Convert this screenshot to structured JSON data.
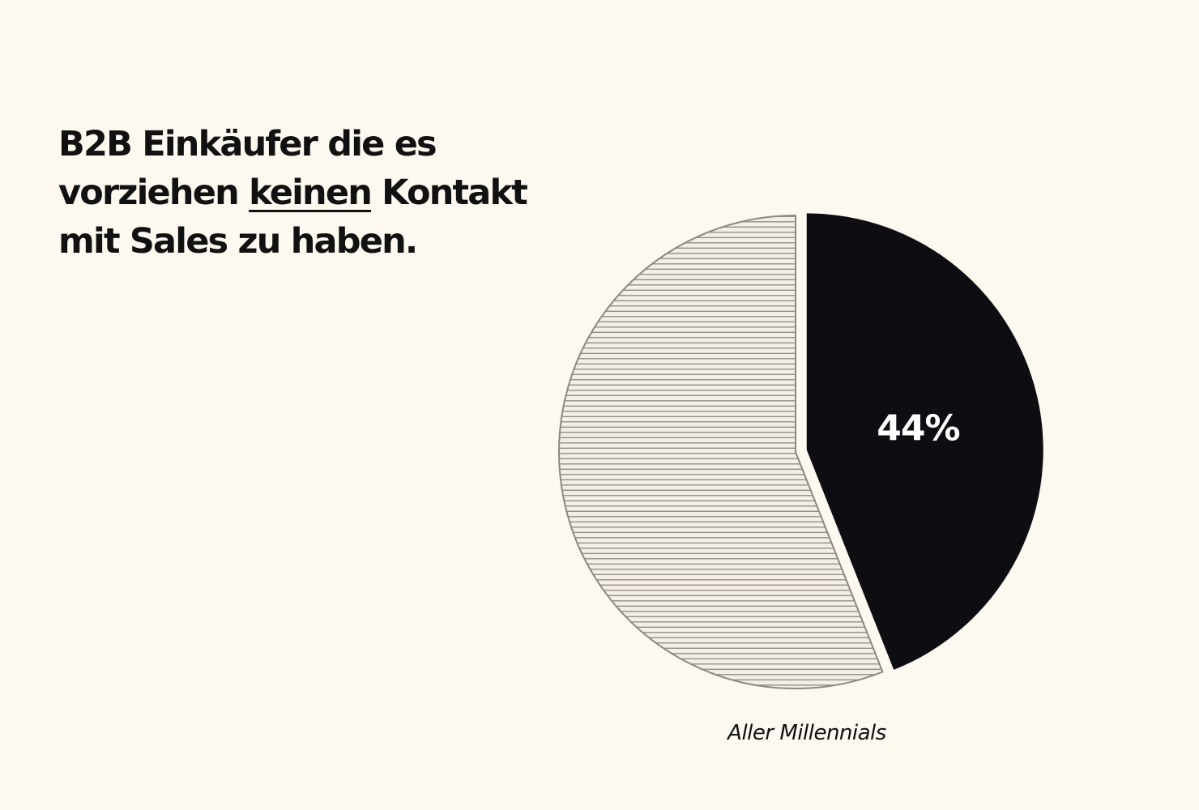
{
  "headline": {
    "part1": "B2B Einkäufer die es vorziehen ",
    "emphasis": "keinen",
    "part2": " Kontakt mit Sales zu haben."
  },
  "colors": {
    "background": "#fdf9f1",
    "highlight_slice": "#0e0e12",
    "rest_slice_fill": "#f4efe6",
    "rest_slice_stripes": "#8d8880",
    "label_text": "#ffffff"
  },
  "chart_data": {
    "type": "pie",
    "caption": "Aller Millennials",
    "slices": [
      {
        "label": "44%",
        "value": 44,
        "style": "solid",
        "exploded": true
      },
      {
        "label": "",
        "value": 56,
        "style": "striped",
        "exploded": false
      }
    ],
    "start_angle": "12 o'clock",
    "direction": "clockwise"
  }
}
